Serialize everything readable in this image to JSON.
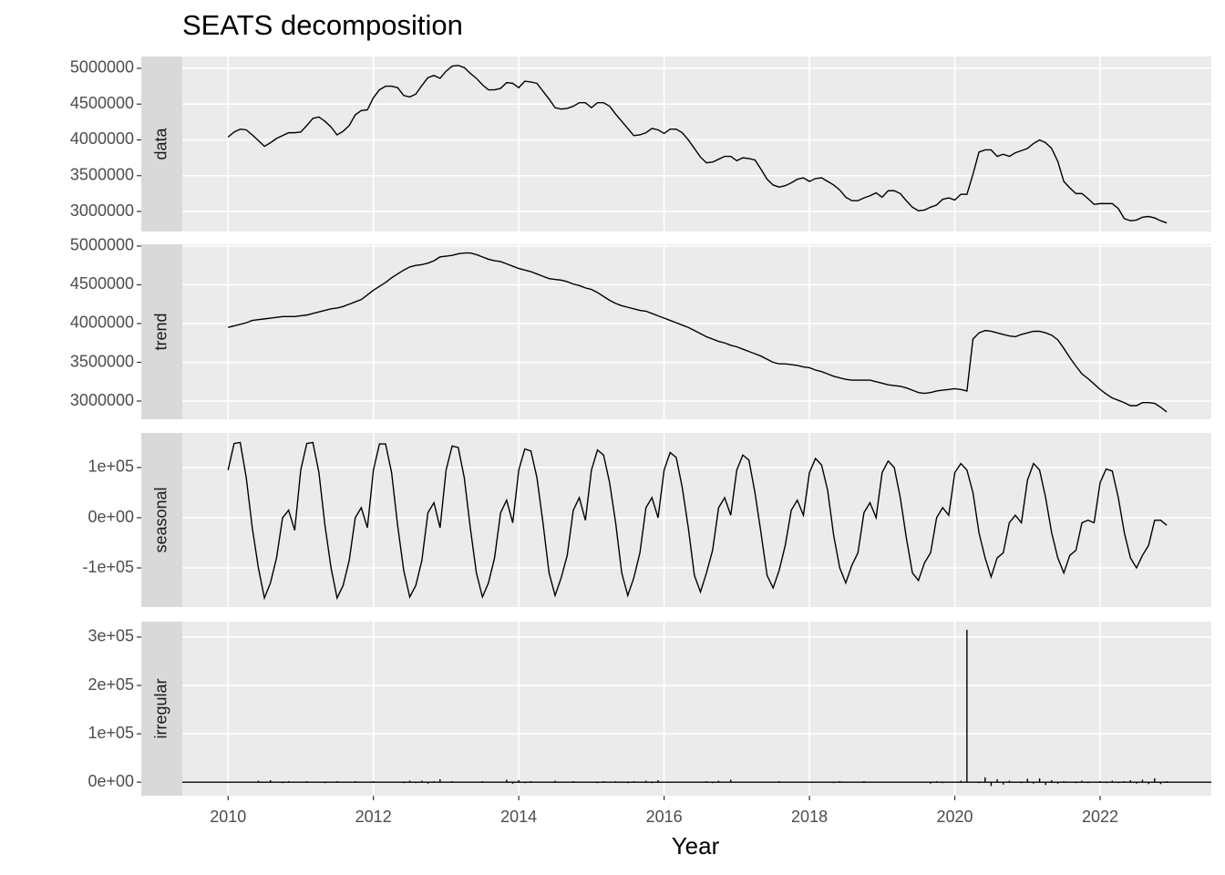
{
  "title": "SEATS decomposition",
  "chart_data": {
    "type": "line",
    "xlabel": "Year",
    "color": "#000000",
    "grid": true,
    "xlim": [
      2009.37,
      2023.53
    ],
    "xticks": [
      2010,
      2012,
      2014,
      2016,
      2018,
      2020,
      2022
    ],
    "x": [
      2010,
      2010.083,
      2010.167,
      2010.25,
      2010.333,
      2010.417,
      2010.5,
      2010.583,
      2010.667,
      2010.75,
      2010.833,
      2010.917,
      2011,
      2011.083,
      2011.167,
      2011.25,
      2011.333,
      2011.417,
      2011.5,
      2011.583,
      2011.667,
      2011.75,
      2011.833,
      2011.917,
      2012,
      2012.083,
      2012.167,
      2012.25,
      2012.333,
      2012.417,
      2012.5,
      2012.583,
      2012.667,
      2012.75,
      2012.833,
      2012.917,
      2013,
      2013.083,
      2013.167,
      2013.25,
      2013.333,
      2013.417,
      2013.5,
      2013.583,
      2013.667,
      2013.75,
      2013.833,
      2013.917,
      2014,
      2014.083,
      2014.167,
      2014.25,
      2014.333,
      2014.417,
      2014.5,
      2014.583,
      2014.667,
      2014.75,
      2014.833,
      2014.917,
      2015,
      2015.083,
      2015.167,
      2015.25,
      2015.333,
      2015.417,
      2015.5,
      2015.583,
      2015.667,
      2015.75,
      2015.833,
      2015.917,
      2016,
      2016.083,
      2016.167,
      2016.25,
      2016.333,
      2016.417,
      2016.5,
      2016.583,
      2016.667,
      2016.75,
      2016.833,
      2016.917,
      2017,
      2017.083,
      2017.167,
      2017.25,
      2017.333,
      2017.417,
      2017.5,
      2017.583,
      2017.667,
      2017.75,
      2017.833,
      2017.917,
      2018,
      2018.083,
      2018.167,
      2018.25,
      2018.333,
      2018.417,
      2018.5,
      2018.583,
      2018.667,
      2018.75,
      2018.833,
      2018.917,
      2019,
      2019.083,
      2019.167,
      2019.25,
      2019.333,
      2019.417,
      2019.5,
      2019.583,
      2019.667,
      2019.75,
      2019.833,
      2019.917,
      2020,
      2020.083,
      2020.167,
      2020.25,
      2020.333,
      2020.417,
      2020.5,
      2020.583,
      2020.667,
      2020.75,
      2020.833,
      2020.917,
      2021,
      2021.083,
      2021.167,
      2021.25,
      2021.333,
      2021.417,
      2021.5,
      2021.583,
      2021.667,
      2021.75,
      2021.833,
      2021.917,
      2022,
      2022.083,
      2022.167,
      2022.25,
      2022.333,
      2022.417,
      2022.5,
      2022.583,
      2022.667,
      2022.75,
      2022.833,
      2022.917
    ],
    "panels": [
      {
        "label": "data",
        "ylim": [
          2720000,
          5165000
        ],
        "yticks": [
          3000000,
          3500000,
          4000000,
          4500000,
          5000000
        ],
        "values": [
          4040000,
          4110000,
          4150000,
          4140000,
          4070000,
          3990000,
          3910000,
          3960000,
          4020000,
          4060000,
          4100000,
          4100000,
          4110000,
          4200000,
          4300000,
          4320000,
          4260000,
          4180000,
          4070000,
          4120000,
          4200000,
          4350000,
          4410000,
          4420000,
          4590000,
          4700000,
          4750000,
          4750000,
          4730000,
          4620000,
          4600000,
          4640000,
          4760000,
          4870000,
          4900000,
          4860000,
          4960000,
          5030000,
          5040000,
          5010000,
          4930000,
          4860000,
          4770000,
          4700000,
          4700000,
          4720000,
          4800000,
          4790000,
          4730000,
          4820000,
          4810000,
          4790000,
          4680000,
          4570000,
          4450000,
          4430000,
          4440000,
          4470000,
          4520000,
          4520000,
          4450000,
          4520000,
          4520000,
          4470000,
          4360000,
          4260000,
          4160000,
          4060000,
          4070000,
          4100000,
          4160000,
          4140000,
          4090000,
          4150000,
          4150000,
          4100000,
          4000000,
          3880000,
          3760000,
          3680000,
          3690000,
          3730000,
          3770000,
          3770000,
          3710000,
          3750000,
          3740000,
          3720000,
          3590000,
          3450000,
          3370000,
          3340000,
          3360000,
          3400000,
          3450000,
          3470000,
          3420000,
          3460000,
          3470000,
          3420000,
          3370000,
          3300000,
          3200000,
          3150000,
          3150000,
          3190000,
          3220000,
          3260000,
          3200000,
          3290000,
          3290000,
          3250000,
          3150000,
          3060000,
          3010000,
          3020000,
          3060000,
          3090000,
          3170000,
          3190000,
          3160000,
          3240000,
          3240000,
          3520000,
          3830000,
          3860000,
          3860000,
          3770000,
          3800000,
          3770000,
          3820000,
          3850000,
          3880000,
          3950000,
          4000000,
          3960000,
          3880000,
          3700000,
          3420000,
          3330000,
          3250000,
          3250000,
          3180000,
          3100000,
          3110000,
          3110000,
          3110000,
          3040000,
          2900000,
          2870000,
          2880000,
          2920000,
          2930000,
          2910000,
          2870000,
          2840000
        ]
      },
      {
        "label": "trend",
        "ylim": [
          2765000,
          5023000
        ],
        "yticks": [
          3000000,
          3500000,
          4000000,
          4500000,
          5000000
        ],
        "values": [
          3950000,
          3970000,
          3990000,
          4010000,
          4040000,
          4050000,
          4060000,
          4070000,
          4080000,
          4090000,
          4090000,
          4090000,
          4100000,
          4110000,
          4130000,
          4150000,
          4170000,
          4190000,
          4200000,
          4220000,
          4250000,
          4280000,
          4310000,
          4370000,
          4430000,
          4480000,
          4530000,
          4590000,
          4640000,
          4690000,
          4730000,
          4750000,
          4760000,
          4780000,
          4810000,
          4860000,
          4870000,
          4880000,
          4900000,
          4910000,
          4910000,
          4890000,
          4860000,
          4830000,
          4810000,
          4800000,
          4770000,
          4740000,
          4710000,
          4690000,
          4670000,
          4640000,
          4610000,
          4580000,
          4570000,
          4560000,
          4540000,
          4510000,
          4490000,
          4460000,
          4440000,
          4400000,
          4350000,
          4300000,
          4260000,
          4230000,
          4210000,
          4190000,
          4170000,
          4160000,
          4130000,
          4100000,
          4070000,
          4040000,
          4010000,
          3980000,
          3950000,
          3910000,
          3870000,
          3830000,
          3800000,
          3770000,
          3750000,
          3720000,
          3700000,
          3670000,
          3640000,
          3610000,
          3580000,
          3540000,
          3500000,
          3480000,
          3480000,
          3470000,
          3460000,
          3440000,
          3430000,
          3400000,
          3380000,
          3350000,
          3320000,
          3300000,
          3280000,
          3270000,
          3270000,
          3270000,
          3270000,
          3250000,
          3230000,
          3210000,
          3200000,
          3190000,
          3170000,
          3140000,
          3110000,
          3100000,
          3110000,
          3130000,
          3140000,
          3150000,
          3160000,
          3150000,
          3130000,
          3800000,
          3880000,
          3910000,
          3900000,
          3880000,
          3860000,
          3840000,
          3830000,
          3860000,
          3880000,
          3900000,
          3900000,
          3880000,
          3850000,
          3790000,
          3680000,
          3560000,
          3450000,
          3350000,
          3290000,
          3220000,
          3150000,
          3090000,
          3040000,
          3010000,
          2980000,
          2940000,
          2940000,
          2980000,
          2980000,
          2970000,
          2920000,
          2860000
        ]
      },
      {
        "label": "seasonal",
        "ylim": [
          -178000,
          169000
        ],
        "yticks": [
          {
            "value": -100000,
            "label": "-1e+05"
          },
          {
            "value": 0,
            "label": "0e+00"
          },
          {
            "value": 100000,
            "label": "1e+05"
          }
        ],
        "values": [
          95000,
          148000,
          150000,
          80000,
          -20000,
          -100000,
          -160000,
          -130000,
          -80000,
          0,
          15000,
          -25000,
          95000,
          148000,
          150000,
          90000,
          -15000,
          -100000,
          -160000,
          -135000,
          -85000,
          0,
          20000,
          -20000,
          95000,
          147000,
          147000,
          90000,
          -15000,
          -105000,
          -158000,
          -135000,
          -85000,
          10000,
          30000,
          -20000,
          95000,
          143000,
          140000,
          80000,
          -20000,
          -110000,
          -158000,
          -130000,
          -80000,
          10000,
          35000,
          -10000,
          95000,
          137000,
          133000,
          80000,
          -10000,
          -110000,
          -155000,
          -120000,
          -75000,
          15000,
          40000,
          -5000,
          95000,
          135000,
          125000,
          70000,
          -10000,
          -110000,
          -155000,
          -120000,
          -70000,
          20000,
          40000,
          0,
          95000,
          130000,
          120000,
          60000,
          -20000,
          -115000,
          -148000,
          -110000,
          -65000,
          20000,
          40000,
          5000,
          95000,
          125000,
          115000,
          50000,
          -30000,
          -115000,
          -140000,
          -105000,
          -55000,
          15000,
          35000,
          5000,
          90000,
          118000,
          105000,
          55000,
          -35000,
          -100000,
          -130000,
          -95000,
          -70000,
          10000,
          30000,
          0,
          90000,
          113000,
          100000,
          40000,
          -40000,
          -110000,
          -125000,
          -90000,
          -70000,
          0,
          20000,
          5000,
          90000,
          108000,
          95000,
          50000,
          -30000,
          -80000,
          -118000,
          -80000,
          -70000,
          -10000,
          5000,
          -10000,
          75000,
          108000,
          95000,
          40000,
          -30000,
          -80000,
          -110000,
          -75000,
          -65000,
          -10000,
          -5000,
          -10000,
          70000,
          97000,
          93000,
          40000,
          -30000,
          -80000,
          -100000,
          -75000,
          -55000,
          -5000,
          -5000,
          -15000
        ]
      },
      {
        "label": "irregular",
        "type": "spike",
        "ylim": [
          -28000,
          332000
        ],
        "yticks": [
          {
            "value": 0,
            "label": "0e+00"
          },
          {
            "value": 100000,
            "label": "1e+05"
          },
          {
            "value": 200000,
            "label": "2e+05"
          },
          {
            "value": 300000,
            "label": "3e+05"
          }
        ],
        "values": [
          0,
          0,
          0,
          0,
          0,
          3000,
          0,
          4000,
          0,
          -2000,
          2000,
          0,
          0,
          2000,
          0,
          0,
          -2000,
          0,
          2000,
          0,
          0,
          2000,
          0,
          0,
          2000,
          0,
          0,
          0,
          0,
          -2000,
          3000,
          -2000,
          3000,
          -3000,
          2000,
          6000,
          0,
          2000,
          0,
          0,
          0,
          0,
          2000,
          0,
          0,
          0,
          5000,
          -3000,
          4000,
          -2000,
          2000,
          0,
          0,
          0,
          3000,
          0,
          0,
          2000,
          0,
          0,
          0,
          -2000,
          2000,
          0,
          2000,
          0,
          -2000,
          2000,
          0,
          3000,
          -2000,
          4000,
          0,
          0,
          0,
          0,
          0,
          0,
          0,
          2000,
          -2000,
          3000,
          0,
          5000,
          0,
          0,
          0,
          0,
          0,
          0,
          0,
          2000,
          0,
          0,
          0,
          0,
          0,
          0,
          0,
          0,
          -2000,
          2000,
          0,
          0,
          0,
          2000,
          0,
          0,
          0,
          0,
          0,
          0,
          0,
          0,
          0,
          0,
          -3000,
          2000,
          -2000,
          0,
          0,
          3000,
          315000,
          0,
          -2000,
          10000,
          -8000,
          6000,
          -5000,
          3000,
          0,
          -2000,
          7000,
          -3000,
          8000,
          -6000,
          4000,
          -3000,
          2000,
          0,
          -2000,
          3000,
          -2000,
          0,
          2000,
          -2000,
          3000,
          -2000,
          2000,
          4000,
          -3000,
          5000,
          -4000,
          8000,
          -4000,
          2000
        ]
      }
    ]
  }
}
